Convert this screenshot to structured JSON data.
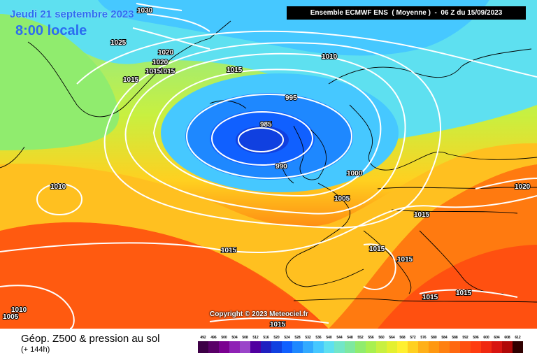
{
  "header": {
    "date": "Jeudi 21 septembre 2023",
    "time": "8:00 locale",
    "source": "Ensemble ECMWF ENS  ( Moyenne )  -  06 Z du 15/09/2023"
  },
  "footer": {
    "field": "Géop. Z500 & pression au sol",
    "lead": "(+ 144h)",
    "copyright": "Copyright © 2023 Meteociel.fr"
  },
  "isobars": [
    "1030",
    "1025",
    "1020",
    "1020",
    "1015",
    "1015",
    "1015",
    "1010",
    "1015",
    "995",
    "985",
    "990",
    "1000",
    "1005",
    "1010",
    "1015",
    "1015",
    "1015",
    "1015",
    "1015",
    "1020",
    "1010",
    "1005",
    "1015",
    "1015"
  ],
  "scale": {
    "ticks": [
      "492",
      "496",
      "500",
      "504",
      "508",
      "512",
      "516",
      "520",
      "524",
      "528",
      "532",
      "536",
      "540",
      "544",
      "548",
      "552",
      "556",
      "560",
      "564",
      "568",
      "572",
      "576",
      "580",
      "584",
      "588",
      "592",
      "596",
      "600",
      "604",
      "608",
      "612"
    ],
    "colors": [
      "#3d0046",
      "#5a0068",
      "#7a0090",
      "#8f22b5",
      "#9a45c9",
      "#5000a0",
      "#2020c0",
      "#1040e0",
      "#1060ff",
      "#1e88ff",
      "#32aaff",
      "#46c8ff",
      "#5ee0f0",
      "#72e6c8",
      "#7ee8a0",
      "#90ec6e",
      "#a8f050",
      "#c8f040",
      "#e4f030",
      "#fff030",
      "#ffd020",
      "#ffb018",
      "#ff9810",
      "#ff8010",
      "#ff6810",
      "#ff5010",
      "#ff3c10",
      "#f02810",
      "#d81410",
      "#b00808",
      "#300000"
    ]
  }
}
